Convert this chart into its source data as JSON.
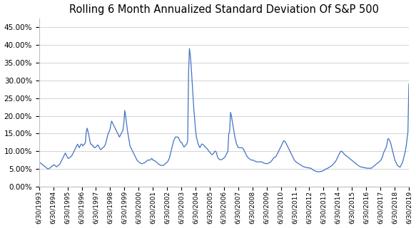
{
  "title": "Rolling 6 Month Annualized Standard Deviation Of S&P 500",
  "line_color": "#4472C4",
  "background_color": "#ffffff",
  "grid_color": "#d3d3d3",
  "ylim": [
    0.0,
    0.475
  ],
  "yticks": [
    0.0,
    0.05,
    0.1,
    0.15,
    0.2,
    0.25,
    0.3,
    0.35,
    0.4,
    0.45
  ],
  "x_labels": [
    "6/30/1993",
    "6/30/1994",
    "6/30/1995",
    "6/30/1996",
    "6/30/1997",
    "6/30/1998",
    "6/30/1999",
    "6/30/2000",
    "6/30/2001",
    "6/30/2002",
    "6/30/2003",
    "6/30/2004",
    "6/30/2005",
    "6/30/2006",
    "6/30/2007",
    "6/30/2008",
    "6/30/2009",
    "6/30/2010",
    "6/30/2011",
    "6/30/2012",
    "6/30/2013",
    "6/30/2014",
    "6/30/2015",
    "6/30/2016",
    "6/30/2017",
    "6/30/2018",
    "6/30/2019"
  ],
  "values": [
    0.07,
    0.068,
    0.066,
    0.064,
    0.062,
    0.06,
    0.058,
    0.056,
    0.054,
    0.052,
    0.05,
    0.05,
    0.052,
    0.054,
    0.056,
    0.058,
    0.06,
    0.062,
    0.06,
    0.058,
    0.056,
    0.058,
    0.06,
    0.062,
    0.065,
    0.07,
    0.075,
    0.08,
    0.085,
    0.09,
    0.095,
    0.09,
    0.085,
    0.08,
    0.08,
    0.082,
    0.084,
    0.086,
    0.09,
    0.095,
    0.1,
    0.105,
    0.11,
    0.115,
    0.12,
    0.115,
    0.11,
    0.115,
    0.12,
    0.12,
    0.115,
    0.118,
    0.12,
    0.125,
    0.155,
    0.165,
    0.155,
    0.145,
    0.13,
    0.12,
    0.12,
    0.115,
    0.115,
    0.11,
    0.11,
    0.112,
    0.115,
    0.118,
    0.115,
    0.11,
    0.105,
    0.105,
    0.108,
    0.11,
    0.112,
    0.115,
    0.12,
    0.13,
    0.14,
    0.15,
    0.155,
    0.16,
    0.175,
    0.185,
    0.18,
    0.175,
    0.17,
    0.165,
    0.16,
    0.155,
    0.15,
    0.145,
    0.14,
    0.145,
    0.15,
    0.155,
    0.16,
    0.18,
    0.215,
    0.2,
    0.18,
    0.16,
    0.145,
    0.13,
    0.115,
    0.11,
    0.105,
    0.1,
    0.095,
    0.09,
    0.085,
    0.08,
    0.075,
    0.072,
    0.07,
    0.068,
    0.066,
    0.065,
    0.065,
    0.066,
    0.067,
    0.068,
    0.07,
    0.072,
    0.075,
    0.075,
    0.075,
    0.075,
    0.078,
    0.08,
    0.075,
    0.075,
    0.073,
    0.072,
    0.07,
    0.068,
    0.065,
    0.063,
    0.062,
    0.06,
    0.06,
    0.06,
    0.06,
    0.062,
    0.064,
    0.066,
    0.068,
    0.07,
    0.075,
    0.08,
    0.09,
    0.1,
    0.11,
    0.12,
    0.13,
    0.135,
    0.14,
    0.14,
    0.14,
    0.14,
    0.135,
    0.13,
    0.125,
    0.125,
    0.12,
    0.115,
    0.112,
    0.115,
    0.118,
    0.12,
    0.13,
    0.32,
    0.39,
    0.37,
    0.34,
    0.3,
    0.26,
    0.22,
    0.19,
    0.16,
    0.14,
    0.13,
    0.12,
    0.115,
    0.11,
    0.115,
    0.12,
    0.12,
    0.118,
    0.115,
    0.112,
    0.11,
    0.108,
    0.105,
    0.1,
    0.098,
    0.095,
    0.092,
    0.09,
    0.092,
    0.095,
    0.1,
    0.1,
    0.095,
    0.085,
    0.08,
    0.078,
    0.076,
    0.076,
    0.077,
    0.078,
    0.08,
    0.082,
    0.085,
    0.09,
    0.095,
    0.1,
    0.15,
    0.155,
    0.21,
    0.2,
    0.185,
    0.17,
    0.155,
    0.14,
    0.13,
    0.12,
    0.115,
    0.11,
    0.11,
    0.11,
    0.11,
    0.11,
    0.108,
    0.105,
    0.1,
    0.095,
    0.09,
    0.085,
    0.082,
    0.08,
    0.078,
    0.076,
    0.075,
    0.075,
    0.075,
    0.073,
    0.072,
    0.071,
    0.07,
    0.07,
    0.07,
    0.07,
    0.07,
    0.07,
    0.07,
    0.068,
    0.067,
    0.066,
    0.065,
    0.065,
    0.065,
    0.066,
    0.067,
    0.068,
    0.07,
    0.073,
    0.076,
    0.08,
    0.082,
    0.083,
    0.085,
    0.09,
    0.095,
    0.1,
    0.105,
    0.11,
    0.115,
    0.12,
    0.125,
    0.13,
    0.128,
    0.125,
    0.12,
    0.115,
    0.11,
    0.105,
    0.1,
    0.095,
    0.09,
    0.085,
    0.08,
    0.075,
    0.072,
    0.07,
    0.068,
    0.066,
    0.065,
    0.063,
    0.062,
    0.06,
    0.058,
    0.057,
    0.056,
    0.055,
    0.055,
    0.054,
    0.054,
    0.053,
    0.053,
    0.052,
    0.052,
    0.05,
    0.048,
    0.046,
    0.045,
    0.044,
    0.043,
    0.043,
    0.042,
    0.042,
    0.042,
    0.043,
    0.043,
    0.044,
    0.045,
    0.046,
    0.048,
    0.05,
    0.05,
    0.052,
    0.053,
    0.055,
    0.056,
    0.058,
    0.06,
    0.062,
    0.065,
    0.068,
    0.07,
    0.075,
    0.08,
    0.085,
    0.09,
    0.095,
    0.1,
    0.1,
    0.098,
    0.095,
    0.092,
    0.09,
    0.088,
    0.086,
    0.084,
    0.082,
    0.08,
    0.078,
    0.076,
    0.074,
    0.072,
    0.07,
    0.068,
    0.066,
    0.064,
    0.062,
    0.06,
    0.058,
    0.057,
    0.056,
    0.055,
    0.055,
    0.054,
    0.054,
    0.053,
    0.053,
    0.052,
    0.052,
    0.052,
    0.052,
    0.052,
    0.052,
    0.054,
    0.056,
    0.058,
    0.06,
    0.062,
    0.064,
    0.066,
    0.068,
    0.07,
    0.072,
    0.075,
    0.08,
    0.085,
    0.095,
    0.1,
    0.105,
    0.11,
    0.12,
    0.135,
    0.135,
    0.13,
    0.125,
    0.115,
    0.105,
    0.095,
    0.085,
    0.075,
    0.07,
    0.065,
    0.06,
    0.058,
    0.056,
    0.055,
    0.06,
    0.065,
    0.07,
    0.08,
    0.09,
    0.1,
    0.115,
    0.135,
    0.155,
    0.29
  ]
}
